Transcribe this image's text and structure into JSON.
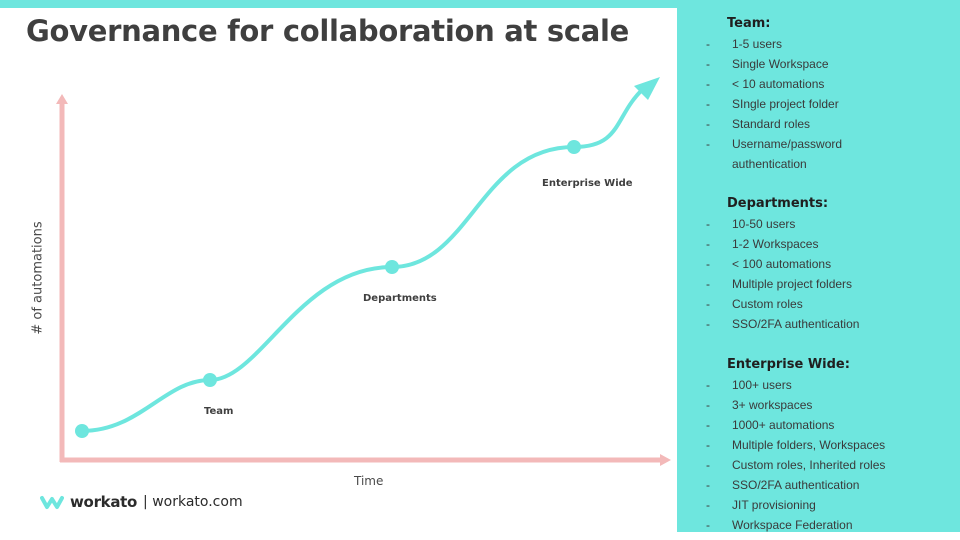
{
  "title": "Governance for collaboration at scale",
  "axes": {
    "y_label": "# of automations",
    "x_label": "Time"
  },
  "stages": [
    {
      "name": "Team"
    },
    {
      "name": "Departments"
    },
    {
      "name": "Enterprise Wide"
    }
  ],
  "footer": {
    "brand": "workato",
    "site": "| workato.com"
  },
  "panel": {
    "sections": [
      {
        "heading": "Team:",
        "items": [
          "1-5 users",
          "Single Workspace",
          "< 10 automations",
          "SIngle  project folder",
          "Standard roles",
          "Username/password",
          "authentication"
        ]
      },
      {
        "heading": "Departments:",
        "items": [
          "10-50 users",
          "1-2 Workspaces",
          "< 100  automations",
          "Multiple project folders",
          "Custom roles",
          "SSO/2FA authentication"
        ]
      },
      {
        "heading": "Enterprise Wide:",
        "items": [
          "100+ users",
          "3+ workspaces",
          "1000+ automations",
          " Multiple folders, Workspaces",
          "Custom roles, Inherited roles",
          "SSO/2FA authentication",
          "JIT provisioning",
          "Workspace Federation"
        ]
      }
    ]
  },
  "colors": {
    "accent": "#6ee6de",
    "curve": "#6ee6de",
    "axis": "#f3b9b9",
    "title": "#3f3f3f"
  }
}
